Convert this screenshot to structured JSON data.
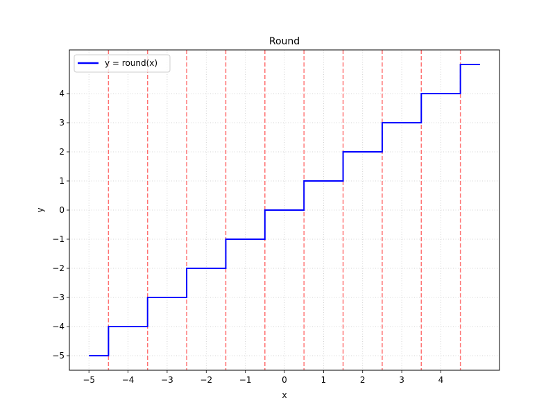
{
  "chart_data": {
    "type": "line",
    "title": "Round",
    "xlabel": "x",
    "ylabel": "y",
    "xlim": [
      -5.5,
      5.5
    ],
    "ylim": [
      -5.5,
      5.5
    ],
    "xticks": [
      -5,
      -4,
      -3,
      -2,
      -1,
      0,
      1,
      2,
      3,
      4
    ],
    "yticks": [
      -5,
      -4,
      -3,
      -2,
      -1,
      0,
      1,
      2,
      3,
      4
    ],
    "grid": true,
    "legend_position": "top-left",
    "series": [
      {
        "name": "y = round(x)",
        "color": "#0000ff",
        "style": "solid",
        "x": [
          -5,
          -4.5,
          -4.5,
          -3.5,
          -3.5,
          -2.5,
          -2.5,
          -1.5,
          -1.5,
          -0.5,
          -0.5,
          0.5,
          0.5,
          1.5,
          1.5,
          2.5,
          2.5,
          3.5,
          3.5,
          4.5,
          4.5,
          5
        ],
        "y": [
          -5,
          -5,
          -4,
          -4,
          -3,
          -3,
          -2,
          -2,
          -1,
          -1,
          0,
          0,
          1,
          1,
          2,
          2,
          3,
          3,
          4,
          4,
          5,
          5
        ]
      }
    ],
    "vlines": {
      "color": "#ff0000",
      "style": "dashed",
      "x": [
        -4.5,
        -3.5,
        -2.5,
        -1.5,
        -0.5,
        0.5,
        1.5,
        2.5,
        3.5,
        4.5
      ]
    }
  }
}
